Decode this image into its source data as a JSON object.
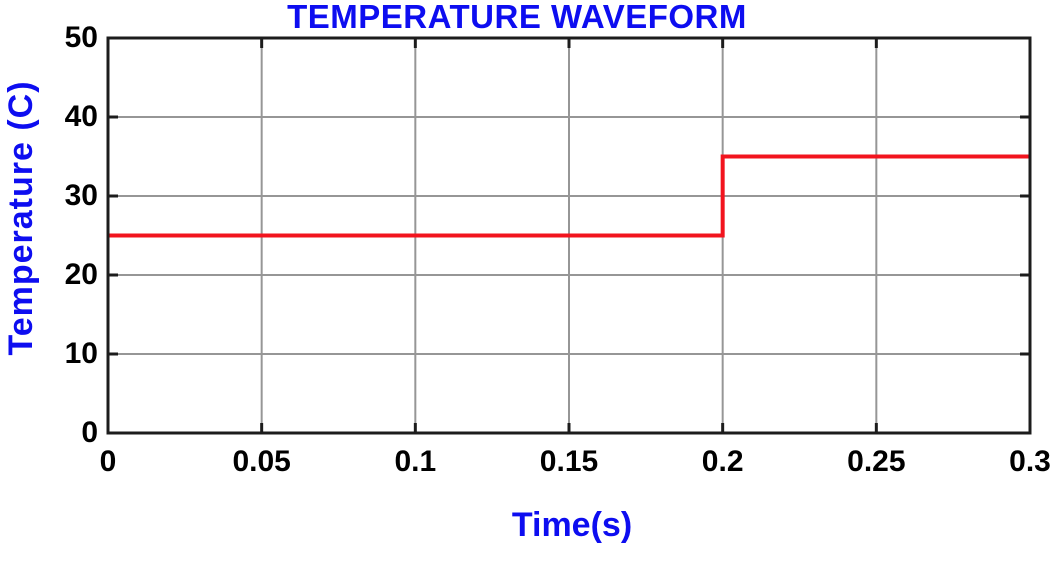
{
  "chart_data": {
    "type": "line",
    "line_style": "step",
    "title": "TEMPERATURE WAVEFORM",
    "xlabel": "Time(s)",
    "ylabel": "Temperature (C)",
    "series": [
      {
        "name": "temperature",
        "color": "#f2141e",
        "x": [
          0,
          0.2,
          0.2,
          0.3
        ],
        "y": [
          25,
          25,
          35,
          35
        ]
      }
    ],
    "xlim": [
      0,
      0.3
    ],
    "ylim": [
      0,
      50
    ],
    "x_ticks": [
      0,
      0.05,
      0.1,
      0.15,
      0.2,
      0.25,
      0.3
    ],
    "x_tick_labels": [
      "0",
      "0.05",
      "0.1",
      "0.15",
      "0.2",
      "0.25",
      "0.3"
    ],
    "y_ticks": [
      0,
      10,
      20,
      30,
      40,
      50
    ],
    "y_tick_labels": [
      "0",
      "10",
      "20",
      "30",
      "40",
      "50"
    ],
    "grid": true,
    "legend_position": "none",
    "colors": {
      "title": "#0d0df0",
      "axis_labels": "#0d0df0",
      "tick_labels": "#000000",
      "grid": "#969696",
      "axis_box": "#1c1c1c",
      "plot_background": "#ffffff"
    }
  }
}
